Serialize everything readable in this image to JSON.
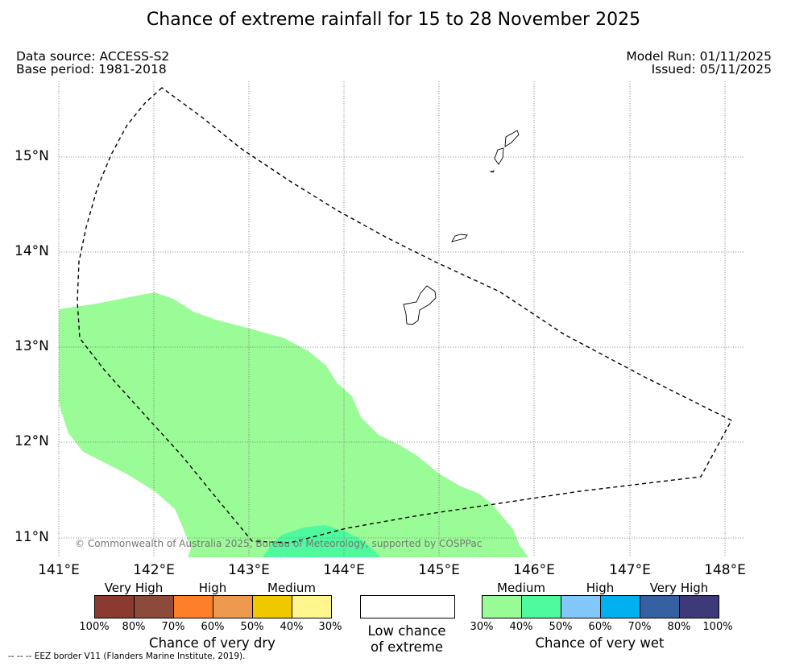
{
  "title": "Chance of extreme rainfall for 15 to 28 November 2025",
  "meta": {
    "data_source": "Data source: ACCESS-S2",
    "base_period": "Base period: 1981-2018",
    "model_run": "Model Run: 01/11/2025",
    "issued": "Issued: 05/11/2025"
  },
  "map": {
    "lon_ticks": [
      "141°E",
      "142°E",
      "143°E",
      "144°E",
      "145°E",
      "146°E",
      "147°E",
      "148°E"
    ],
    "lat_ticks": [
      "15°N",
      "14°N",
      "13°N",
      "12°N",
      "11°N"
    ],
    "lon_range": [
      141,
      148.2
    ],
    "lat_range": [
      10.8,
      15.75
    ],
    "copyright": "© Commonwealth of Australia 2025, Bureau of Meteorology, supported by COSPPac",
    "eez_legend": "--  --  -- EEZ border V11 (Flanders Marine Institute, 2019).",
    "colors": {
      "medium_wet": "#9afc96",
      "high_wet": "#4ffa9e",
      "eez": "#000000"
    }
  },
  "legend_dry": {
    "title": "Chance of very dry",
    "categories": [
      "Very High",
      "High",
      "Medium"
    ],
    "colors": [
      "#8b3a2f",
      "#8b4a3a",
      "#fd7f2a",
      "#ee9a4e",
      "#f0c800",
      "#fff68e"
    ],
    "percent_labels": [
      "100%",
      "80%",
      "70%",
      "60%",
      "50%",
      "40%",
      "30%"
    ]
  },
  "legend_low": {
    "line1": "Low chance",
    "line2": "of extreme"
  },
  "legend_wet": {
    "title": "Chance of very wet",
    "categories": [
      "Medium",
      "High",
      "Very High"
    ],
    "colors": [
      "#98fb96",
      "#4ffa9e",
      "#82c8fd",
      "#00b0ef",
      "#3561a3",
      "#3e3a7a"
    ],
    "percent_labels": [
      "30%",
      "40%",
      "50%",
      "60%",
      "70%",
      "80%",
      "100%"
    ]
  }
}
